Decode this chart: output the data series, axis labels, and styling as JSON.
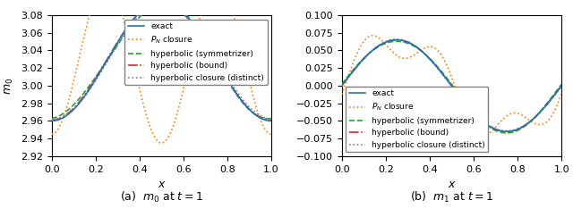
{
  "left_ylim": [
    2.92,
    3.08
  ],
  "left_yticks": [
    2.92,
    2.94,
    2.96,
    2.98,
    3.0,
    3.02,
    3.04,
    3.06,
    3.08
  ],
  "right_ylim": [
    -0.1,
    0.1
  ],
  "right_yticks": [
    -0.1,
    -0.075,
    -0.05,
    -0.025,
    0.0,
    0.025,
    0.05,
    0.075,
    0.1
  ],
  "xlim": [
    0.0,
    1.0
  ],
  "xticks": [
    0.0,
    0.2,
    0.4,
    0.6,
    0.8,
    1.0
  ],
  "xlabel": "x",
  "left_ylabel": "$m_0$",
  "right_ylabel": "",
  "caption_left": "(a)  $m_0$ at $t=1$",
  "caption_right": "(b)  $m_1$ at $t=1$",
  "colors": {
    "exact": "#1f77b4",
    "pn": "#ff7f0e",
    "symmetrizer": "#2ca02c",
    "bound": "#d62728",
    "distinct": "#9467bd"
  },
  "n_points": 500
}
